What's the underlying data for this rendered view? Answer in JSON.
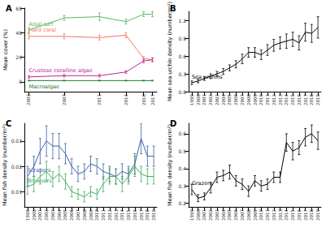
{
  "chart_data": [
    {
      "type": "line",
      "title": "A",
      "ylabel": "Mean cover (%)",
      "x": [
        2003,
        2007,
        2011,
        2014,
        2016,
        2017
      ],
      "xlim": [
        2002.5,
        2017.5
      ],
      "xticks": [
        2003,
        2007,
        2011,
        2014,
        2016,
        2017
      ],
      "ylim": [
        -8,
        60
      ],
      "yticks": [
        0,
        20,
        40,
        60
      ],
      "grid": false,
      "series": [
        {
          "name": "Algal turf",
          "color": "#5cb85c",
          "values": [
            42,
            52,
            53,
            49,
            55,
            55
          ],
          "errors": [
            2,
            2,
            3,
            2,
            2,
            2
          ]
        },
        {
          "name": "Hard coral",
          "color": "#f4785f",
          "values": [
            37,
            37,
            36,
            38,
            19,
            18
          ],
          "errors": [
            2,
            2,
            2,
            2,
            1.5,
            1.5
          ]
        },
        {
          "name": "Crustose coralline algae",
          "color": "#c2258f",
          "values": [
            4,
            5,
            5,
            8,
            17,
            18
          ],
          "errors": [
            1,
            1,
            1,
            1,
            1.5,
            1.5
          ]
        },
        {
          "name": "Macroalgae",
          "color": "#1b7a2e",
          "values": [
            1,
            1,
            1,
            1,
            1,
            1
          ],
          "errors": [
            0.3,
            0.3,
            0.3,
            0.3,
            0.3,
            0.3
          ]
        }
      ]
    },
    {
      "type": "line",
      "title": "B",
      "ylabel": "Mean sea urchin density (number/m²)",
      "categories": [
        "1999",
        "2000",
        "2001",
        "2002",
        "2003",
        "2004",
        "2005",
        "2006",
        "2007",
        "2008",
        "2009",
        "2010",
        "2011",
        "2012",
        "2013",
        "2014",
        "2015",
        "2016",
        "2017",
        "2018",
        "2019"
      ],
      "ylim": [
        0,
        1.35
      ],
      "yticks": [
        {
          "value": 0,
          "label": "0.0"
        },
        0.3,
        0.6,
        0.9,
        1.2
      ],
      "grid": false,
      "series": [
        {
          "name": "Sea urchins",
          "color": "#000000",
          "values": [
            0.15,
            0.18,
            0.22,
            0.26,
            0.3,
            0.34,
            0.4,
            0.46,
            0.55,
            0.66,
            0.66,
            0.62,
            0.7,
            0.78,
            0.82,
            0.85,
            0.88,
            0.82,
            1.0,
            0.98,
            1.08
          ],
          "errors": [
            0.03,
            0.03,
            0.03,
            0.04,
            0.04,
            0.05,
            0.05,
            0.06,
            0.08,
            0.08,
            0.08,
            0.08,
            0.09,
            0.1,
            0.1,
            0.12,
            0.12,
            0.12,
            0.15,
            0.15,
            0.18
          ]
        }
      ]
    },
    {
      "type": "line",
      "title": "C",
      "ylabel": "Mean fish density (number/m²)",
      "categories": [
        "1999",
        "2000",
        "2001",
        "2002",
        "2003",
        "2004",
        "2005",
        "2006",
        "2007",
        "2008",
        "2009",
        "2010",
        "2011",
        "2012",
        "2013",
        "2014",
        "2015",
        "2016",
        "2017",
        "2018",
        "2019"
      ],
      "ylim": [
        0.004,
        0.037
      ],
      "yticks": [
        0.01,
        0.02,
        0.03
      ],
      "grid": false,
      "series": [
        {
          "name": "Scrapers",
          "color": "#3b5ea8",
          "values": [
            0.016,
            0.02,
            0.026,
            0.03,
            0.028,
            0.028,
            0.025,
            0.02,
            0.017,
            0.018,
            0.021,
            0.02,
            0.018,
            0.017,
            0.016,
            0.018,
            0.017,
            0.021,
            0.031,
            0.024,
            0.024
          ],
          "errors": [
            0.004,
            0.004,
            0.005,
            0.006,
            0.005,
            0.005,
            0.004,
            0.003,
            0.003,
            0.003,
            0.003,
            0.003,
            0.003,
            0.003,
            0.003,
            0.003,
            0.003,
            0.004,
            0.006,
            0.004,
            0.004
          ]
        },
        {
          "name": "Browsers",
          "color": "#41ab5d",
          "values": [
            0.012,
            0.013,
            0.016,
            0.018,
            0.015,
            0.017,
            0.014,
            0.01,
            0.009,
            0.008,
            0.01,
            0.009,
            0.013,
            0.016,
            0.016,
            0.013,
            0.016,
            0.02,
            0.017,
            0.016,
            0.016
          ],
          "errors": [
            0.003,
            0.003,
            0.003,
            0.004,
            0.003,
            0.003,
            0.003,
            0.002,
            0.002,
            0.002,
            0.002,
            0.002,
            0.003,
            0.003,
            0.003,
            0.003,
            0.003,
            0.004,
            0.003,
            0.003,
            0.003
          ]
        }
      ]
    },
    {
      "type": "line",
      "title": "D",
      "ylabel": "Mean fish density (number/m²)",
      "categories": [
        "1999",
        "2000",
        "2001",
        "2002",
        "2003",
        "2004",
        "2005",
        "2006",
        "2007",
        "2008",
        "2009",
        "2010",
        "2011",
        "2012",
        "2013",
        "2014",
        "2015",
        "2016",
        "2017",
        "2018",
        "2019"
      ],
      "ylim": [
        0.18,
        0.66
      ],
      "yticks": [
        0.2,
        0.3,
        0.4,
        0.5,
        0.6
      ],
      "grid": false,
      "series": [
        {
          "name": "Grazers",
          "color": "#000000",
          "values": [
            0.28,
            0.23,
            0.24,
            0.29,
            0.35,
            0.36,
            0.38,
            0.33,
            0.31,
            0.27,
            0.33,
            0.3,
            0.31,
            0.35,
            0.35,
            0.55,
            0.5,
            0.52,
            0.58,
            0.6,
            0.56
          ],
          "errors": [
            0.03,
            0.02,
            0.02,
            0.03,
            0.03,
            0.03,
            0.04,
            0.03,
            0.03,
            0.03,
            0.03,
            0.03,
            0.03,
            0.03,
            0.03,
            0.05,
            0.05,
            0.04,
            0.05,
            0.05,
            0.05
          ]
        }
      ]
    }
  ]
}
